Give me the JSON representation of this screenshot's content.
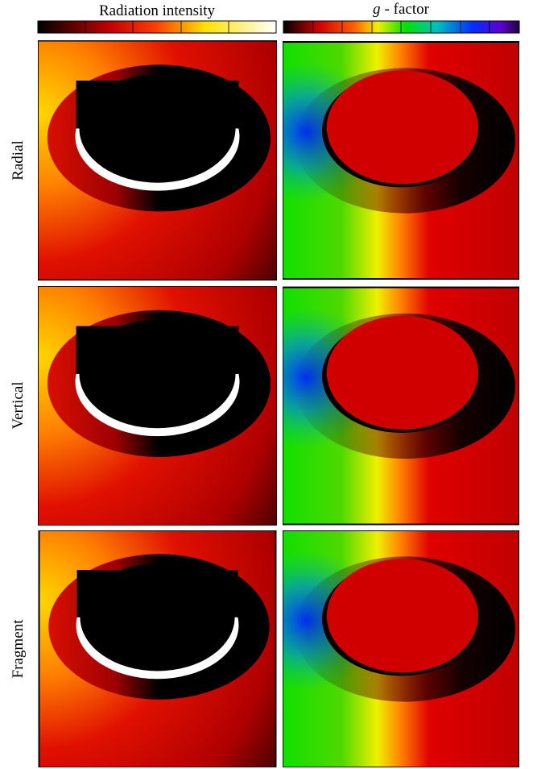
{
  "header": {
    "columns": [
      {
        "title": "Radiation intensity"
      },
      {
        "symbol": "g",
        "title": "- factor"
      }
    ]
  },
  "rows": [
    {
      "label": "Radial"
    },
    {
      "label": "Vertical"
    },
    {
      "label": "Fragment"
    }
  ]
}
